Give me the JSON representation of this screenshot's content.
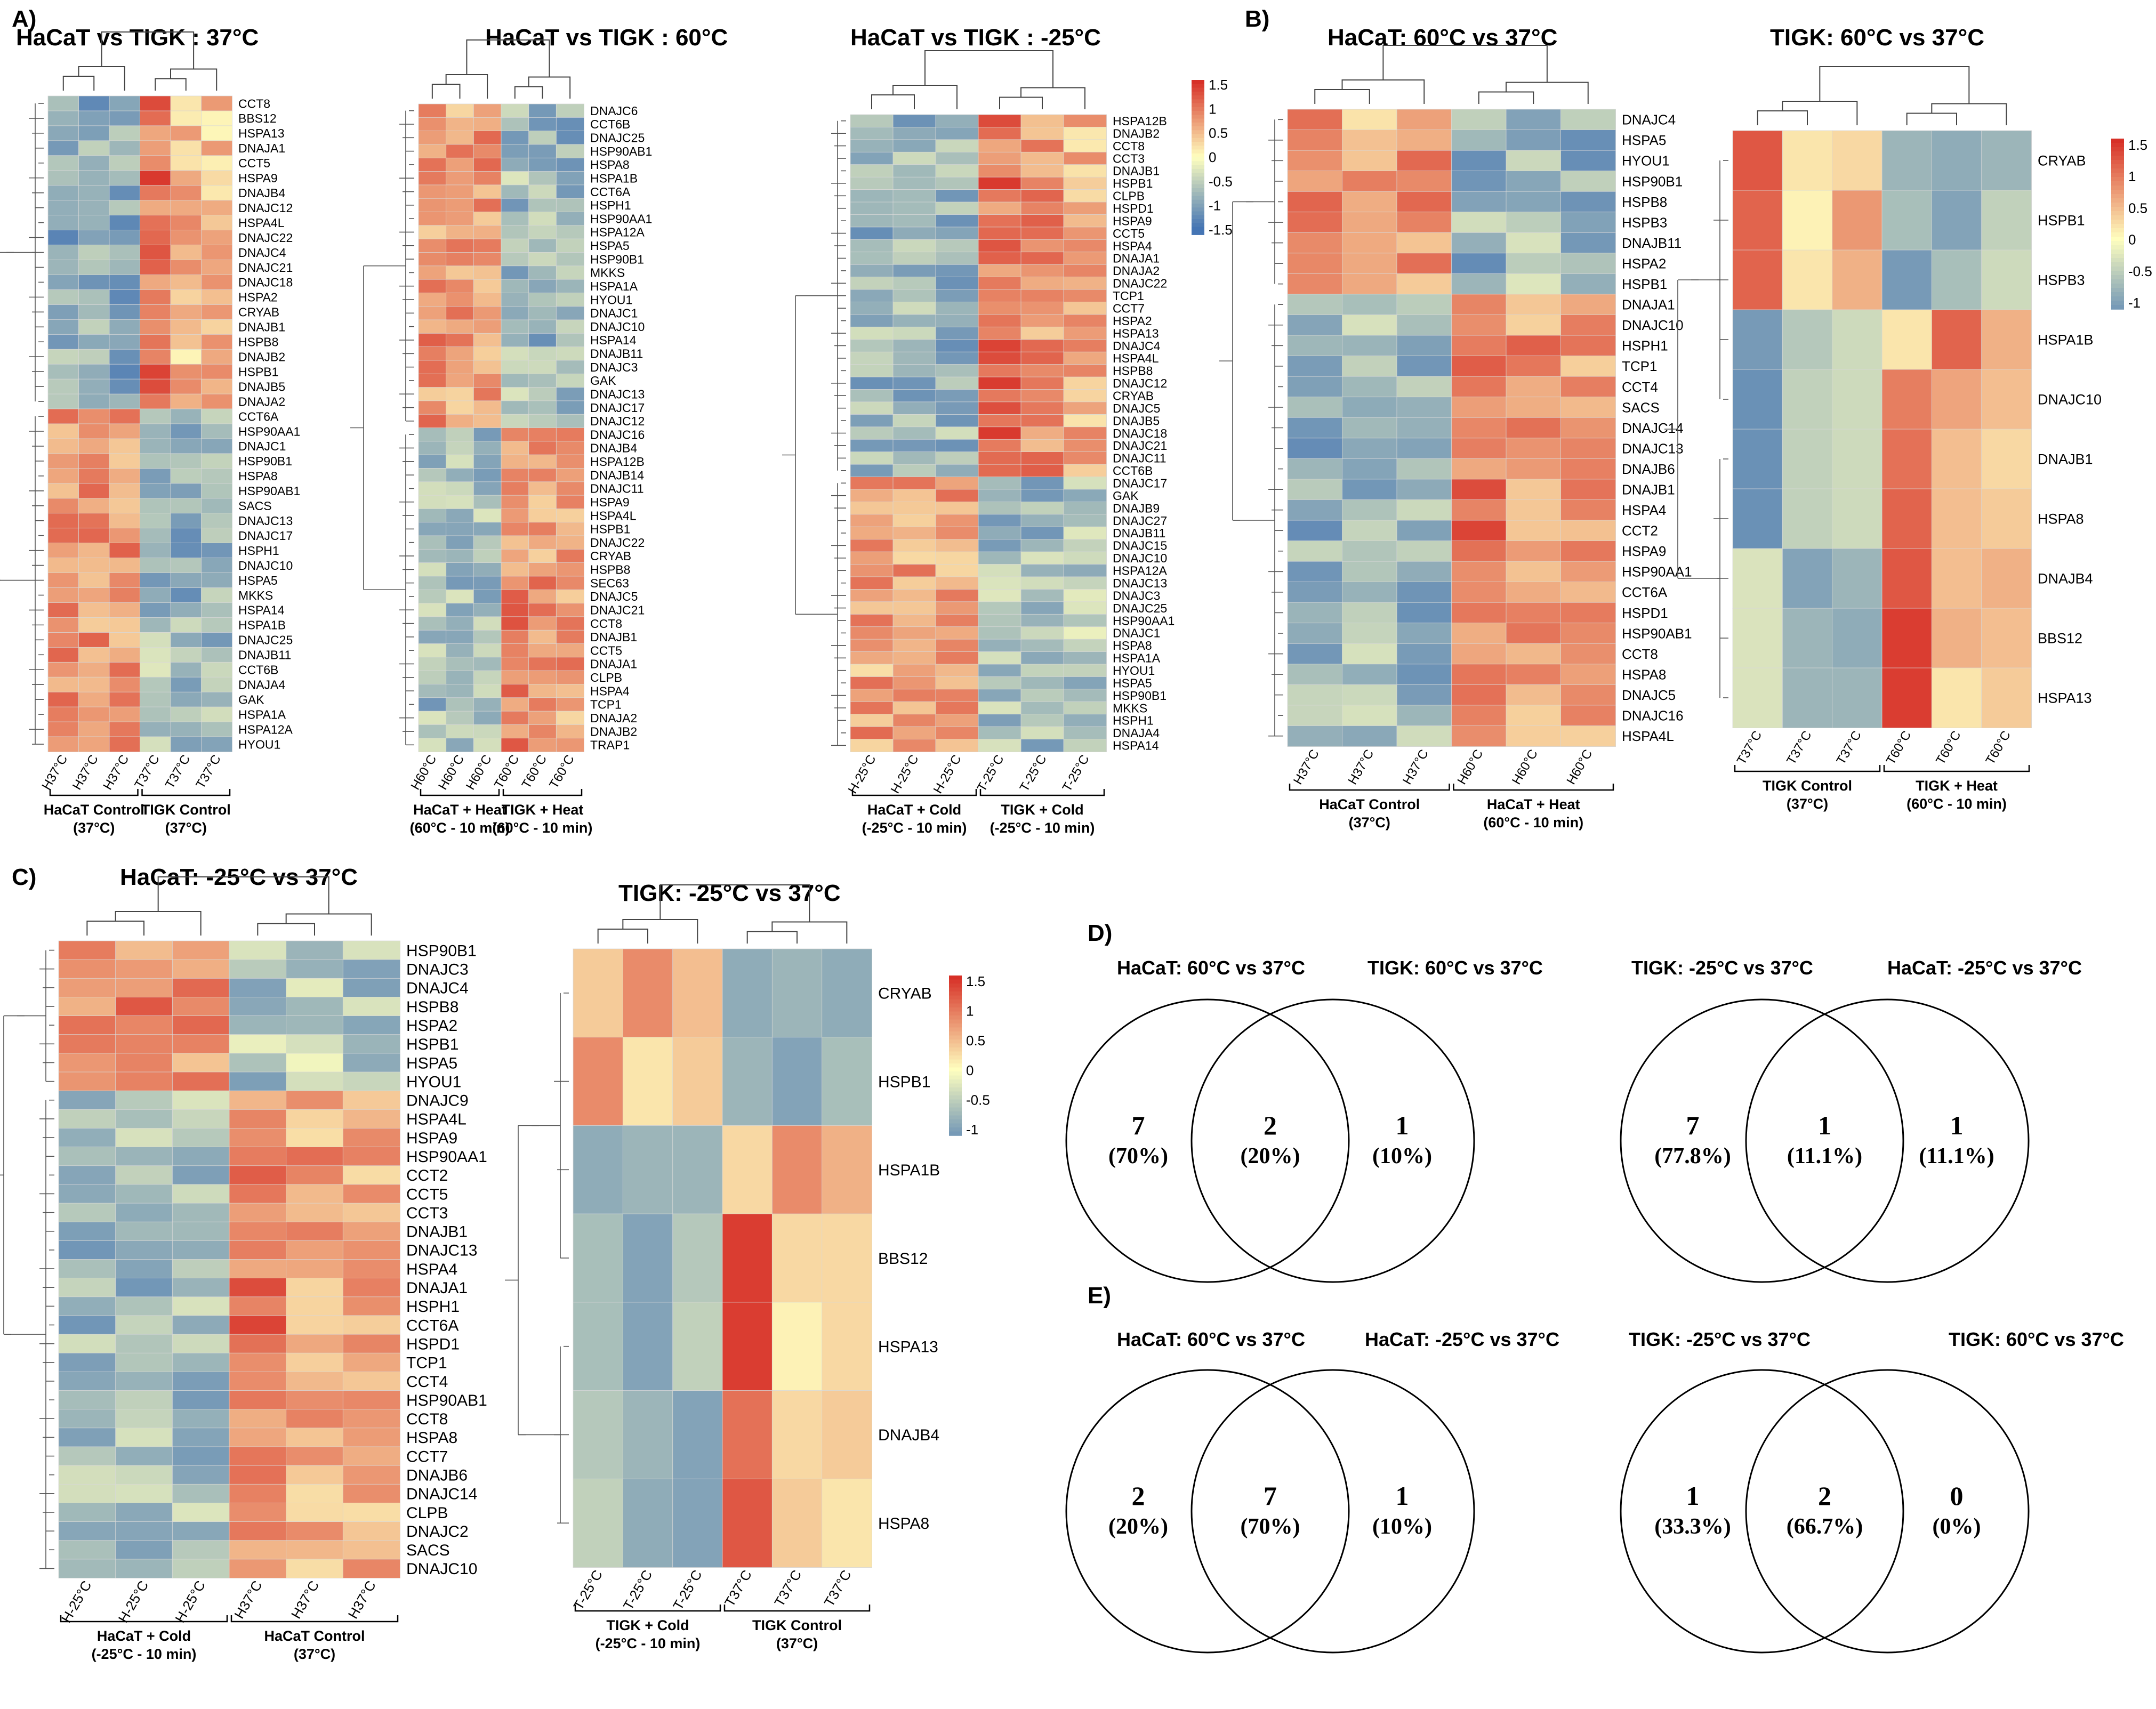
{
  "figure_title": "",
  "panel_labels": {
    "A": "A)",
    "B": "B)",
    "C": "C)",
    "D": "D)",
    "E": "E)"
  },
  "colors": {
    "low": "#4575b4",
    "mid": "#ffffbf",
    "high": "#d73027",
    "line": "#000000",
    "border": "#cccccc"
  },
  "chart_data": [
    {
      "type": "heatmap",
      "panel": "A",
      "title": "HaCaT vs TIGK : 37°C",
      "columns": [
        "H37°C",
        "H37°C",
        "H37°C",
        "T37°C",
        "T37°C",
        "T37°C"
      ],
      "groups": [
        {
          "label": "HaCaT Control",
          "sub": "(37°C)",
          "span": 3
        },
        {
          "label": "TIGK Control",
          "sub": "(37°C)",
          "span": 3
        }
      ],
      "genes": [
        "CCT8",
        "BBS12",
        "HSPA13",
        "DNAJA1",
        "CCT5",
        "HSPA9",
        "DNAJB4",
        "DNAJC12",
        "HSPA4L",
        "DNAJC22",
        "DNAJC4",
        "DNAJC21",
        "DNAJC18",
        "HSPA2",
        "CRYAB",
        "DNAJB1",
        "HSPB8",
        "DNAJB2",
        "HSPB1",
        "DNAJB5",
        "DNAJA2",
        "CCT6A",
        "HSP90AA1",
        "DNAJC1",
        "HSP90B1",
        "HSPA8",
        "HSP90AB1",
        "SACS",
        "DNAJC13",
        "DNAJC17",
        "HSPH1",
        "DNAJC10",
        "HSPA5",
        "MKKS",
        "HSPA14",
        "HSPA1B",
        "DNAJC25",
        "DNAJB11",
        "CCT6B",
        "DNAJA4",
        "GAK",
        "HSPA1A",
        "HSPA12A",
        "HYOU1"
      ],
      "pattern": [
        {
          "rows": 21,
          "values": [
            -0.9,
            -0.9,
            -0.9,
            1.1,
            0.5,
            0.5
          ]
        },
        {
          "rows": 23,
          "values": [
            0.8,
            0.8,
            0.8,
            -0.7,
            -0.8,
            -0.8
          ]
        }
      ]
    },
    {
      "type": "heatmap",
      "panel": "A",
      "title": "HaCaT vs TIGK : 60°C",
      "columns": [
        "H60°C",
        "H60°C",
        "H60°C",
        "T60°C",
        "T60°C",
        "T60°C"
      ],
      "groups": [
        {
          "label": "HaCaT + Heat",
          "sub": "(60°C - 10 min)",
          "span": 3
        },
        {
          "label": "TIGK + Heat",
          "sub": "(60°C - 10 min)",
          "span": 3
        }
      ],
      "genes": [
        "DNAJC6",
        "CCT6B",
        "DNAJC25",
        "HSP90AB1",
        "HSPA8",
        "HSPA1B",
        "CCT6A",
        "HSPH1",
        "HSP90AA1",
        "HSPA12A",
        "HSPA5",
        "HSP90B1",
        "MKKS",
        "HSPA1A",
        "HYOU1",
        "DNAJC1",
        "DNAJC10",
        "HSPA14",
        "DNAJB11",
        "DNAJC3",
        "GAK",
        "DNAJC13",
        "DNAJC17",
        "DNAJC12",
        "DNAJC16",
        "DNAJB4",
        "HSPA12B",
        "DNAJB14",
        "DNAJC11",
        "HSPA9",
        "HSPA4L",
        "HSPB1",
        "DNAJC22",
        "CRYAB",
        "HSPB8",
        "SEC63",
        "DNAJC5",
        "DNAJC21",
        "CCT8",
        "DNAJB1",
        "CCT5",
        "DNAJA1",
        "CLPB",
        "HSPA4",
        "TCP1",
        "DNAJA2",
        "DNAJB2",
        "TRAP1"
      ],
      "pattern": [
        {
          "rows": 24,
          "values": [
            0.8,
            0.7,
            0.8,
            -0.7,
            -0.8,
            -0.8
          ]
        },
        {
          "rows": 24,
          "values": [
            -0.7,
            -0.7,
            -0.7,
            0.9,
            0.8,
            0.7
          ]
        }
      ]
    },
    {
      "type": "heatmap",
      "panel": "A",
      "title": "HaCaT vs TIGK : -25°C",
      "columns": [
        "H-25°C",
        "H-25°C",
        "H-25°C",
        "T-25°C",
        "T-25°C",
        "T-25°C"
      ],
      "groups": [
        {
          "label": "HaCaT + Cold",
          "sub": "(-25°C - 10 min)",
          "span": 3
        },
        {
          "label": "TIGK + Cold",
          "sub": "(-25°C - 10 min)",
          "span": 3
        }
      ],
      "genes": [
        "HSPA12B",
        "DNAJB2",
        "CCT8",
        "CCT3",
        "DNAJB1",
        "HSPB1",
        "CLPB",
        "HSPD1",
        "HSPA9",
        "CCT5",
        "HSPA4",
        "DNAJA1",
        "DNAJA2",
        "DNAJC22",
        "TCP1",
        "CCT7",
        "HSPA2",
        "HSPA13",
        "DNAJC4",
        "HSPA4L",
        "HSPB8",
        "DNAJC12",
        "CRYAB",
        "DNAJC5",
        "DNAJB5",
        "DNAJC18",
        "DNAJC21",
        "DNAJC11",
        "CCT6B",
        "DNAJC17",
        "GAK",
        "DNAJB9",
        "DNAJC27",
        "DNAJB11",
        "DNAJC15",
        "DNAJC10",
        "HSPA12A",
        "DNAJC13",
        "DNAJC3",
        "DNAJC25",
        "HSP90AA1",
        "DNAJC1",
        "HSPA8",
        "HSPA1A",
        "HYOU1",
        "HSPA5",
        "HSP90B1",
        "MKKS",
        "HSPH1",
        "DNAJA4",
        "HSPA14"
      ],
      "pattern": [
        {
          "rows": 29,
          "values": [
            -0.8,
            -0.8,
            -0.8,
            1.1,
            0.8,
            0.6
          ]
        },
        {
          "rows": 22,
          "values": [
            0.7,
            0.7,
            0.7,
            -0.7,
            -0.7,
            -0.6
          ]
        }
      ]
    },
    {
      "type": "heatmap",
      "panel": "B",
      "title": "HaCaT: 60°C vs 37°C",
      "columns": [
        "H37°C",
        "H37°C",
        "H37°C",
        "H60°C",
        "H60°C",
        "H60°C"
      ],
      "groups": [
        {
          "label": "HaCaT Control",
          "sub": "(37°C)",
          "span": 3
        },
        {
          "label": "HaCaT + Heat",
          "sub": "(60°C - 10 min)",
          "span": 3
        }
      ],
      "genes": [
        "DNAJC4",
        "HSPA5",
        "HYOU1",
        "HSP90B1",
        "HSPB8",
        "HSPB3",
        "DNAJB11",
        "HSPA2",
        "HSPB1",
        "DNAJA1",
        "DNAJC10",
        "HSPH1",
        "TCP1",
        "CCT4",
        "SACS",
        "DNAJC14",
        "DNAJC13",
        "DNAJB6",
        "DNAJB1",
        "HSPA4",
        "CCT2",
        "HSPA9",
        "HSP90AA1",
        "CCT6A",
        "HSPD1",
        "HSP90AB1",
        "CCT8",
        "HSPA8",
        "DNAJC5",
        "DNAJC16",
        "HSPA4L"
      ],
      "pattern": [
        {
          "rows": 9,
          "values": [
            0.9,
            0.6,
            0.8,
            -0.8,
            -0.7,
            -0.8
          ]
        },
        {
          "rows": 22,
          "values": [
            -0.8,
            -0.7,
            -0.8,
            1.0,
            0.8,
            0.7
          ]
        }
      ]
    },
    {
      "type": "heatmap",
      "panel": "B",
      "title": "TIGK: 60°C vs 37°C",
      "columns": [
        "T37°C",
        "T37°C",
        "T37°C",
        "T60°C",
        "T60°C",
        "T60°C"
      ],
      "groups": [
        {
          "label": "TIGK Control",
          "sub": "(37°C)",
          "span": 3
        },
        {
          "label": "TIGK + Heat",
          "sub": "(60°C - 10 min)",
          "span": 3
        }
      ],
      "genes": [
        "CRYAB",
        "HSPB1",
        "HSPB3",
        "HSPA1B",
        "DNAJC10",
        "DNAJB1",
        "HSPA8",
        "DNAJB4",
        "BBS12",
        "HSPA13"
      ],
      "legend": {
        "ticks": [
          "1.5",
          "1",
          "0.5",
          "0",
          "-0.5",
          "-1"
        ]
      },
      "values": [
        [
          1.3,
          0.2,
          0.3,
          -0.8,
          -0.9,
          -0.8
        ],
        [
          1.2,
          0.1,
          0.8,
          -0.7,
          -1.0,
          -0.5
        ],
        [
          1.2,
          0.2,
          0.6,
          -1.1,
          -0.7,
          -0.4
        ],
        [
          -1.1,
          -0.6,
          -0.4,
          0.2,
          1.2,
          0.6
        ],
        [
          -1.2,
          -0.5,
          -0.4,
          1.0,
          0.7,
          0.5
        ],
        [
          -1.2,
          -0.5,
          -0.4,
          1.1,
          0.5,
          0.3
        ],
        [
          -1.2,
          -0.5,
          -0.4,
          1.2,
          0.5,
          0.4
        ],
        [
          -0.3,
          -1.0,
          -0.8,
          1.3,
          0.5,
          0.6
        ],
        [
          -0.3,
          -0.8,
          -0.9,
          1.5,
          0.6,
          0.5
        ],
        [
          -0.3,
          -0.8,
          -0.8,
          1.5,
          0.2,
          0.4
        ]
      ]
    },
    {
      "type": "heatmap",
      "panel": "C",
      "title": "HaCaT: -25°C vs 37°C",
      "columns": [
        "H-25°C",
        "H-25°C",
        "H-25°C",
        "H37°C",
        "H37°C",
        "H37°C"
      ],
      "groups": [
        {
          "label": "HaCaT + Cold",
          "sub": "(-25°C - 10 min)",
          "span": 3
        },
        {
          "label": "HaCaT Control",
          "sub": "(37°C)",
          "span": 3
        }
      ],
      "genes": [
        "HSP90B1",
        "DNAJC3",
        "DNAJC4",
        "HSPB8",
        "HSPA2",
        "HSPB1",
        "HSPA5",
        "HYOU1",
        "DNAJC9",
        "HSPA4L",
        "HSPA9",
        "HSP90AA1",
        "CCT2",
        "CCT5",
        "CCT3",
        "DNAJB1",
        "DNAJC13",
        "HSPA4",
        "DNAJA1",
        "HSPH1",
        "CCT6A",
        "HSPD1",
        "TCP1",
        "CCT4",
        "HSP90AB1",
        "CCT8",
        "HSPA8",
        "CCT7",
        "DNAJB6",
        "DNAJC14",
        "CLPB",
        "DNAJC2",
        "SACS",
        "DNAJC10"
      ],
      "pattern": [
        {
          "rows": 8,
          "values": [
            0.8,
            0.9,
            0.8,
            -0.6,
            -0.5,
            -0.6
          ]
        },
        {
          "rows": 26,
          "values": [
            -0.7,
            -0.7,
            -0.7,
            1.0,
            0.7,
            0.6
          ]
        }
      ]
    },
    {
      "type": "heatmap",
      "panel": "C",
      "title": "TIGK: -25°C vs 37°C",
      "columns": [
        "T-25°C",
        "T-25°C",
        "T-25°C",
        "T37°C",
        "T37°C",
        "T37°C"
      ],
      "groups": [
        {
          "label": "TIGK + Cold",
          "sub": "(-25°C - 10 min)",
          "span": 3
        },
        {
          "label": "TIGK Control",
          "sub": "(37°C)",
          "span": 3
        }
      ],
      "genes": [
        "CRYAB",
        "HSPB1",
        "HSPA1B",
        "BBS12",
        "HSPA13",
        "DNAJB4",
        "HSPA8"
      ],
      "legend": {
        "ticks": [
          "1.5",
          "1",
          "0.5",
          "0",
          "-0.5",
          "-1"
        ]
      },
      "values": [
        [
          0.4,
          0.9,
          0.5,
          -0.9,
          -0.8,
          -0.9
        ],
        [
          0.9,
          0.2,
          0.4,
          -0.8,
          -1.0,
          -0.7
        ],
        [
          -0.9,
          -0.8,
          -0.8,
          0.3,
          0.9,
          0.6
        ],
        [
          -0.7,
          -1.0,
          -0.6,
          1.5,
          0.3,
          0.3
        ],
        [
          -0.7,
          -1.0,
          -0.5,
          1.5,
          0.1,
          0.3
        ],
        [
          -0.6,
          -0.8,
          -1.0,
          1.1,
          0.3,
          0.4
        ],
        [
          -0.5,
          -0.9,
          -1.0,
          1.3,
          0.4,
          0.2
        ]
      ]
    }
  ],
  "legend_A": {
    "ticks": [
      "1.5",
      "1",
      "0.5",
      "0",
      "-0.5",
      "-1",
      "-1.5"
    ]
  },
  "legend_C": {
    "ticks": [
      "1.5",
      "1",
      "0.5",
      "0",
      "-0.5",
      "-1"
    ]
  },
  "venns": [
    {
      "panel": "D",
      "left_label": "HaCaT: 60°C vs 37°C",
      "right_label": "TIGK: 60°C vs 37°C",
      "left": {
        "n": "7",
        "pct": "(70%)"
      },
      "mid": {
        "n": "2",
        "pct": "(20%)"
      },
      "right": {
        "n": "1",
        "pct": "(10%)"
      }
    },
    {
      "panel": "D",
      "left_label": "TIGK: -25°C vs 37°C",
      "right_label": "HaCaT: -25°C vs 37°C",
      "left": {
        "n": "7",
        "pct": "(77.8%)"
      },
      "mid": {
        "n": "1",
        "pct": "(11.1%)"
      },
      "right": {
        "n": "1",
        "pct": "(11.1%)"
      }
    },
    {
      "panel": "E",
      "left_label": "HaCaT: 60°C vs 37°C",
      "right_label": "HaCaT: -25°C vs 37°C",
      "left": {
        "n": "2",
        "pct": "(20%)"
      },
      "mid": {
        "n": "7",
        "pct": "(70%)"
      },
      "right": {
        "n": "1",
        "pct": "(10%)"
      }
    },
    {
      "panel": "E",
      "left_label": "TIGK: -25°C vs 37°C",
      "right_label": "TIGK: 60°C vs 37°C",
      "left": {
        "n": "1",
        "pct": "(33.3%)"
      },
      "mid": {
        "n": "2",
        "pct": "(66.7%)"
      },
      "right": {
        "n": "0",
        "pct": "(0%)"
      }
    }
  ]
}
